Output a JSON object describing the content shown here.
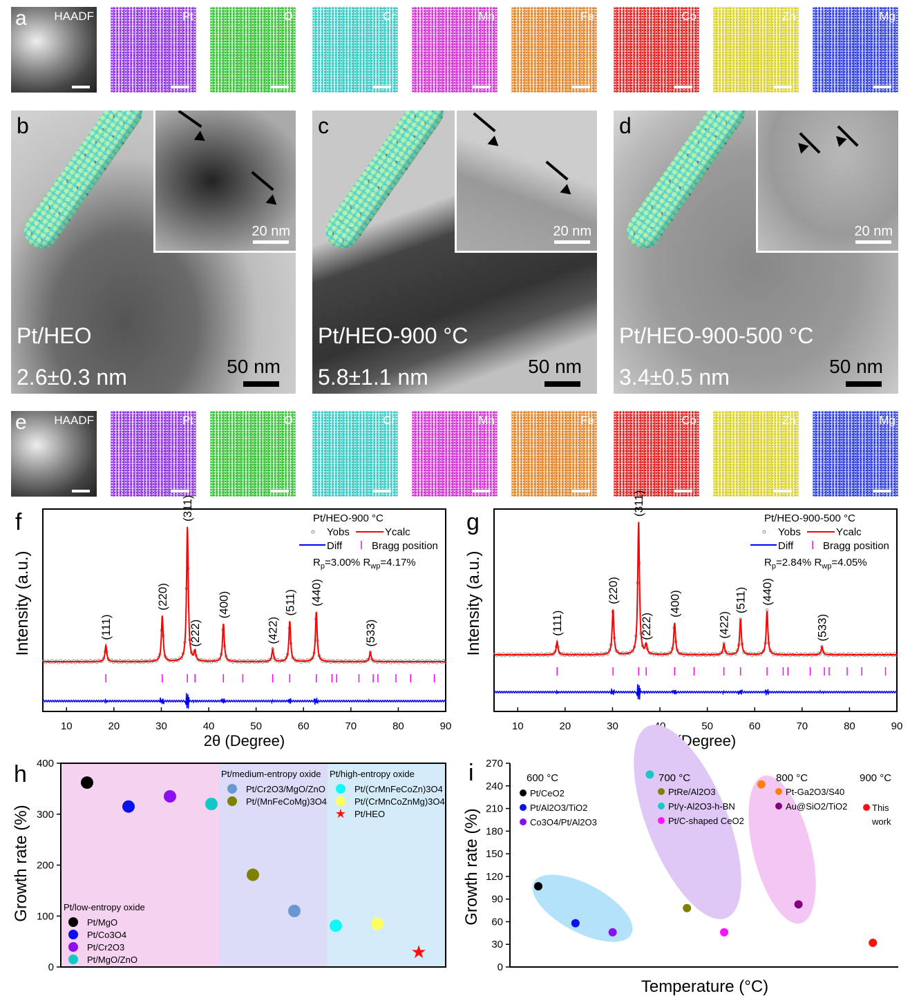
{
  "panel_a": {
    "letter": "a",
    "tiles": [
      {
        "label": "HAADF",
        "color": "#bbbbbb"
      },
      {
        "label": "Pt",
        "color": "#8a2be2"
      },
      {
        "label": "O",
        "color": "#2fbf2f"
      },
      {
        "label": "Cr",
        "color": "#2fc7c0"
      },
      {
        "label": "Mn",
        "color": "#d02bd0"
      },
      {
        "label": "Fe",
        "color": "#e08020"
      },
      {
        "label": "Co",
        "color": "#e01818"
      },
      {
        "label": "Zn",
        "color": "#d8d020"
      },
      {
        "label": "Mg",
        "color": "#2838e0"
      }
    ]
  },
  "panel_e": {
    "letter": "e",
    "tiles": [
      {
        "label": "HAADF",
        "color": "#bbbbbb"
      },
      {
        "label": "Pt",
        "color": "#8a2be2"
      },
      {
        "label": "O",
        "color": "#2fbf2f"
      },
      {
        "label": "Cr",
        "color": "#2fc7c0"
      },
      {
        "label": "Mn",
        "color": "#d02bd0"
      },
      {
        "label": "Fe",
        "color": "#e08020"
      },
      {
        "label": "Co",
        "color": "#e01818"
      },
      {
        "label": "Zn",
        "color": "#d8d020"
      },
      {
        "label": "Mg",
        "color": "#2838e0"
      }
    ]
  },
  "tem": [
    {
      "letter": "b",
      "name": "Pt/HEO",
      "size": "2.6±0.3 nm",
      "scale": "50 nm",
      "inset_scale": "20 nm"
    },
    {
      "letter": "c",
      "name": "Pt/HEO-900 °C",
      "size": "5.8±1.1 nm",
      "scale": "50 nm",
      "inset_scale": "20 nm"
    },
    {
      "letter": "d",
      "name": "Pt/HEO-900-500 °C",
      "size": "3.4±0.5 nm",
      "scale": "50 nm",
      "inset_scale": "20 nm"
    }
  ],
  "chart_data": [
    {
      "panel": "f",
      "type": "line",
      "title": "Pt/HEO-900 °C",
      "xlabel": "2θ (Degree)",
      "ylabel": "Intensity (a.u.)",
      "xlim": [
        5,
        90
      ],
      "xticks": [
        10,
        20,
        30,
        40,
        50,
        60,
        70,
        80,
        90
      ],
      "legend": {
        "yobs": "Yobs",
        "ycalc": "Ycalc",
        "diff": "Diff",
        "bragg": "Bragg position",
        "rp": "R",
        "rp_sub": "p",
        "rp_val": "=3.00% ",
        "rwp": "R",
        "rwp_sub": "wp",
        "rwp_val": "=4.17%"
      },
      "peaks": [
        {
          "x": 18.3,
          "i": 0.12,
          "hkl": "(111)"
        },
        {
          "x": 30.2,
          "i": 0.34,
          "hkl": "(220)"
        },
        {
          "x": 35.5,
          "i": 1.0,
          "hkl": "(311)"
        },
        {
          "x": 37.1,
          "i": 0.07,
          "hkl": "(222)"
        },
        {
          "x": 43.1,
          "i": 0.28,
          "hkl": "(400)"
        },
        {
          "x": 53.5,
          "i": 0.09,
          "hkl": "(422)"
        },
        {
          "x": 57.1,
          "i": 0.3,
          "hkl": "(511)"
        },
        {
          "x": 62.7,
          "i": 0.37,
          "hkl": "(440)"
        },
        {
          "x": 74.1,
          "i": 0.07,
          "hkl": "(533)"
        }
      ],
      "bragg_positions": [
        18.3,
        30.2,
        35.5,
        37.1,
        43.1,
        47.2,
        53.5,
        57.1,
        62.7,
        66.0,
        67.0,
        71.7,
        74.7,
        75.7,
        79.5,
        82.6,
        87.6
      ],
      "colors": {
        "ycalc": "#ff0000",
        "yobs": "#808080",
        "diff": "#0000ff",
        "bragg": "#ff00ff"
      }
    },
    {
      "panel": "g",
      "type": "line",
      "title": "Pt/HEO-900-500 °C",
      "xlabel": "2θ (Degree)",
      "ylabel": "Intensity (a.u.)",
      "xlim": [
        5,
        90
      ],
      "xticks": [
        10,
        20,
        30,
        40,
        50,
        60,
        70,
        80,
        90
      ],
      "legend": {
        "yobs": "Yobs",
        "ycalc": "Ycalc",
        "diff": "Diff",
        "bragg": "Bragg position",
        "rp": "R",
        "rp_sub": "p",
        "rp_val": "=2.84%  ",
        "rwp": "R",
        "rwp_sub": "wp",
        "rwp_val": "=4.05%"
      },
      "peaks": [
        {
          "x": 18.3,
          "i": 0.1,
          "hkl": "(111)"
        },
        {
          "x": 30.1,
          "i": 0.34,
          "hkl": "(220)"
        },
        {
          "x": 35.5,
          "i": 1.0,
          "hkl": "(311)"
        },
        {
          "x": 37.1,
          "i": 0.07,
          "hkl": "(222)"
        },
        {
          "x": 43.1,
          "i": 0.24,
          "hkl": "(400)"
        },
        {
          "x": 53.5,
          "i": 0.08,
          "hkl": "(422)"
        },
        {
          "x": 57.0,
          "i": 0.27,
          "hkl": "(511)"
        },
        {
          "x": 62.6,
          "i": 0.33,
          "hkl": "(440)"
        },
        {
          "x": 74.2,
          "i": 0.06,
          "hkl": "(533)"
        }
      ],
      "bragg_positions": [
        18.3,
        30.1,
        35.5,
        37.1,
        43.1,
        47.2,
        53.5,
        57.0,
        62.6,
        66.0,
        67.0,
        71.7,
        74.7,
        75.7,
        79.5,
        82.6,
        87.6
      ],
      "colors": {
        "ycalc": "#ff0000",
        "yobs": "#808080",
        "diff": "#0000ff",
        "bragg": "#ff00ff"
      }
    },
    {
      "panel": "h",
      "type": "scatter",
      "ylabel": "Growth rate (%)",
      "ylim": [
        0,
        400
      ],
      "yticks": [
        0,
        100,
        200,
        300,
        400
      ],
      "groups": [
        {
          "name": "Pt/low-entropy oxide",
          "bg": "#f4d2f0"
        },
        {
          "name": "Pt/medium-entropy oxide",
          "bg": "#dcdcf8"
        },
        {
          "name": "Pt/high-entropy oxide",
          "bg": "#d4ecfa"
        }
      ],
      "points": [
        {
          "label": "Pt/MgO",
          "group": 0,
          "order": 1,
          "value": 362,
          "color": "#000000"
        },
        {
          "label": "Pt/Co3O4",
          "group": 0,
          "order": 2,
          "value": 315,
          "color": "#0a10f0"
        },
        {
          "label": "Pt/Cr2O3",
          "group": 0,
          "order": 3,
          "value": 335,
          "color": "#8a10f0"
        },
        {
          "label": "Pt/MgO/ZnO",
          "group": 0,
          "order": 4,
          "value": 320,
          "color": "#10c8c8"
        },
        {
          "label": "Pt/(MnFeCoMg)3O4",
          "group": 1,
          "order": 5,
          "value": 181,
          "color": "#808000"
        },
        {
          "label": "Pt/Cr2O3/MgO/ZnO",
          "group": 1,
          "order": 6,
          "value": 110,
          "color": "#6898d0"
        },
        {
          "label": "Pt/(CrMnFeCoZn)3O4",
          "group": 2,
          "order": 7,
          "value": 81,
          "color": "#10f8f8"
        },
        {
          "label": "Pt/(CrMnCoZnMg)3O4",
          "group": 2,
          "order": 8,
          "value": 85,
          "color": "#ffff60"
        },
        {
          "label": "Pt/HEO",
          "group": 2,
          "order": 9,
          "value": 30,
          "color": "#ff1010",
          "marker": "star"
        }
      ]
    },
    {
      "panel": "i",
      "type": "scatter",
      "xlabel": "Temperature (°C)",
      "ylabel": "Growth rate (%)",
      "ylim": [
        0,
        270
      ],
      "yticks": [
        0,
        30,
        60,
        90,
        120,
        150,
        180,
        210,
        240,
        270
      ],
      "groups": [
        {
          "name": "600 °C"
        },
        {
          "name": "700 °C"
        },
        {
          "name": "800 °C"
        },
        {
          "name": "900 °C"
        }
      ],
      "points": [
        {
          "label": "Pt/CeO2",
          "group": 0,
          "order": 1,
          "value": 107,
          "color": "#000000"
        },
        {
          "label": "Pt/Al2O3/TiO2",
          "group": 0,
          "order": 2,
          "value": 58,
          "color": "#0a10f0"
        },
        {
          "label": "Co3O4/Pt/Al2O3",
          "group": 0,
          "order": 3,
          "value": 46,
          "color": "#8a10f0"
        },
        {
          "label": "Pt/γ-Al2O3-h-BN",
          "group": 1,
          "order": 4,
          "value": 255,
          "color": "#18c8c8"
        },
        {
          "label": "PtRe/Al2O3",
          "group": 1,
          "order": 5,
          "value": 78,
          "color": "#808000"
        },
        {
          "label": "Pt/C-shaped CeO2",
          "group": 1,
          "order": 6,
          "value": 46,
          "color": "#ff10ff"
        },
        {
          "label": "Pt-Ga2O3/S40",
          "group": 2,
          "order": 7,
          "value": 242,
          "color": "#ff7f10"
        },
        {
          "label": "Au@SiO2/TiO2",
          "group": 2,
          "order": 8,
          "value": 83,
          "color": "#800080"
        },
        {
          "label": "This work",
          "group": 3,
          "order": 10,
          "value": 32,
          "color": "#ff1010"
        }
      ]
    }
  ],
  "panel_letters": {
    "f": "f",
    "g": "g",
    "h": "h",
    "i": "i"
  }
}
